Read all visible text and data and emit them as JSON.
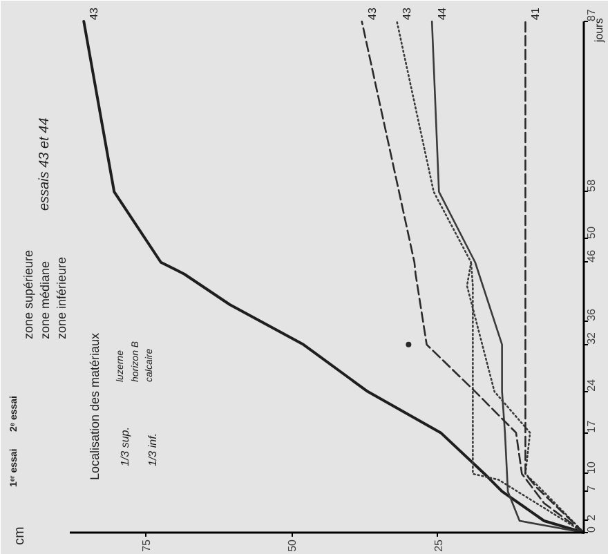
{
  "chart_data": {
    "type": "line",
    "ylabel": "jours",
    "xlim": [
      88,
      0
    ],
    "xticks": [
      25,
      50,
      75
    ],
    "ylim": [
      0,
      87
    ],
    "yticks": [
      0,
      2,
      7,
      10,
      17,
      24,
      32,
      36,
      46,
      50,
      58,
      87
    ],
    "marker": "none",
    "series": [
      {
        "color": "#1e1e1e",
        "line_style": "solid",
        "x": [
          0,
          6.8,
          14,
          17,
          24.5,
          37,
          48,
          60.6,
          68.4,
          72.4,
          80.4,
          85.6
        ],
        "values": [
          0,
          2,
          7,
          10,
          17,
          24,
          32,
          38.8,
          44,
          46,
          58,
          87
        ]
      },
      {
        "color": "#3a3a3a",
        "line_style": "solid",
        "x": [
          0,
          11,
          13,
          13.5,
          14,
          14,
          18.6,
          24.8,
          26
        ],
        "values": [
          0,
          2,
          7,
          17,
          24,
          32,
          46,
          58,
          87
        ]
      },
      {
        "color": "#3a3a3a",
        "line_style": "dotted",
        "x": [
          0,
          7.5,
          10,
          9.2,
          15.3,
          20,
          19.3,
          25.7,
          32
        ],
        "values": [
          0,
          7.6,
          10,
          17,
          24,
          42,
          46,
          58,
          87
        ]
      },
      {
        "color": "#3a3a3a",
        "line_style": "dotted",
        "x": [
          0,
          14.6,
          19,
          19,
          19.3
        ],
        "values": [
          0,
          9,
          10,
          42,
          46
        ]
      },
      {
        "color": "#2a2a2a",
        "line_style": "dashed",
        "x": [
          0,
          6.8,
          10.6,
          11.6,
          18.6,
          26.9,
          28.8,
          29,
          38
        ],
        "values": [
          0,
          5,
          10,
          17,
          24,
          32,
          44,
          46,
          87
        ]
      },
      {
        "color": "#2a2a2a",
        "line_style": "dashed",
        "x": [
          0,
          8,
          10,
          10
        ],
        "values": [
          0,
          7.6,
          10,
          87
        ]
      },
      {
        "type": "scatter",
        "marker": "circle",
        "color": "#2a2a2a",
        "x": [
          30
        ],
        "values": [
          32
        ]
      }
    ],
    "annotations": [
      {
        "text": "43",
        "x": 85.6,
        "y": 87
      },
      {
        "text": "43",
        "x": 38,
        "y": 87
      },
      {
        "text": "43",
        "x": 32,
        "y": 87
      },
      {
        "text": "44",
        "x": 26,
        "y": 87
      },
      {
        "text": "41",
        "x": 10,
        "y": 87
      },
      "cm",
      "essais 43 et 44",
      "1ᵉʳ essai",
      "2ᵉ essai",
      "zone supérieure",
      "zone médiane",
      "zone inférieure",
      "Localisation des matériaux",
      "1/3 sup.",
      "1/3 inf.",
      "luzerne",
      "horizon B",
      "calcaire"
    ]
  }
}
